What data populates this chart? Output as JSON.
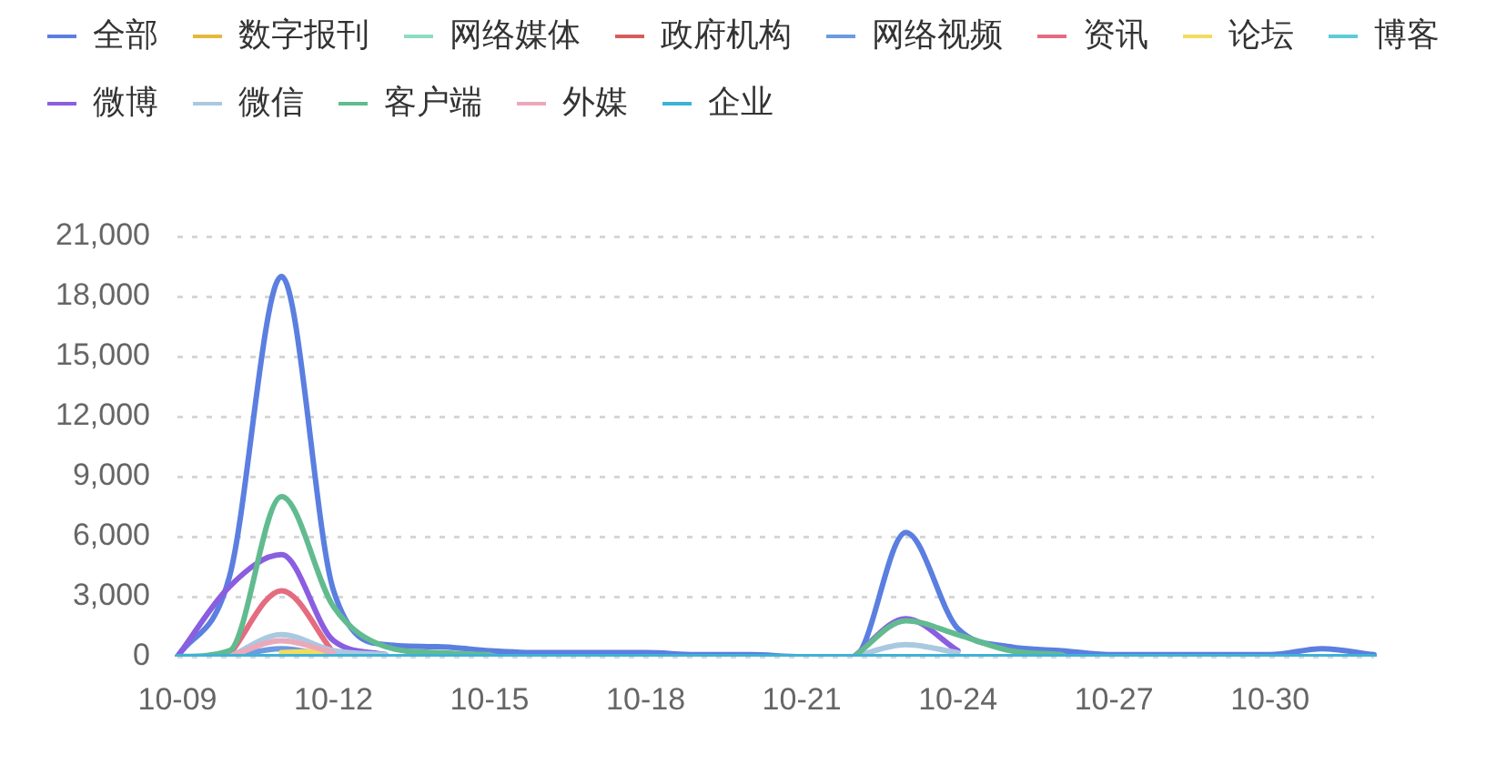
{
  "chart_data": {
    "type": "line",
    "categories": [
      "10-09",
      null,
      null,
      "10-12",
      null,
      null,
      "10-15",
      null,
      null,
      "10-18",
      null,
      null,
      "10-21",
      null,
      null,
      "10-24",
      null,
      null,
      "10-27",
      null,
      null,
      "10-30",
      null,
      null
    ],
    "series": [
      {
        "name": "全部",
        "color": "#5b7fe0",
        "values": [
          0,
          4000,
          19000,
          3300,
          600,
          500,
          300,
          200,
          200,
          200,
          100,
          100,
          0,
          0,
          6200,
          1400,
          500,
          300,
          100,
          100,
          100,
          100,
          400,
          100
        ]
      },
      {
        "name": "数字报刊",
        "color": "#e6b73a",
        "values": [
          null,
          null,
          null,
          null,
          null,
          null,
          null,
          null,
          null,
          null,
          null,
          null,
          null,
          null,
          null,
          null,
          null,
          null,
          null,
          null,
          null,
          null,
          null,
          null
        ]
      },
      {
        "name": "网络媒体",
        "color": "#8edcbf",
        "values": [
          null,
          null,
          null,
          null,
          null,
          null,
          null,
          null,
          null,
          null,
          null,
          null,
          null,
          null,
          null,
          null,
          null,
          null,
          null,
          null,
          null,
          null,
          null,
          null
        ]
      },
      {
        "name": "政府机构",
        "color": "#d65c5c",
        "values": [
          null,
          null,
          null,
          null,
          null,
          null,
          null,
          null,
          null,
          null,
          null,
          null,
          null,
          null,
          null,
          null,
          null,
          null,
          null,
          null,
          null,
          null,
          null,
          null
        ]
      },
      {
        "name": "网络视频",
        "color": "#6b9be0",
        "values": [
          null,
          0,
          400,
          0,
          null,
          null,
          null,
          null,
          null,
          null,
          null,
          null,
          null,
          null,
          null,
          null,
          null,
          null,
          null,
          null,
          null,
          null,
          null,
          null
        ]
      },
      {
        "name": "资讯",
        "color": "#e56b80",
        "values": [
          null,
          100,
          3300,
          200,
          null,
          null,
          null,
          null,
          null,
          null,
          null,
          null,
          null,
          null,
          null,
          null,
          null,
          null,
          null,
          null,
          null,
          null,
          null,
          null
        ]
      },
      {
        "name": "论坛",
        "color": "#f2dc5e",
        "values": [
          null,
          null,
          200,
          300,
          null,
          null,
          null,
          null,
          null,
          null,
          null,
          null,
          null,
          null,
          null,
          null,
          null,
          null,
          null,
          null,
          null,
          null,
          null,
          null
        ]
      },
      {
        "name": "博客",
        "color": "#5ecbd9",
        "values": [
          null,
          null,
          null,
          null,
          null,
          null,
          null,
          null,
          null,
          null,
          null,
          null,
          null,
          null,
          null,
          null,
          null,
          null,
          null,
          null,
          null,
          null,
          null,
          null
        ]
      },
      {
        "name": "微博",
        "color": "#8a5ee0",
        "values": [
          0,
          3500,
          5100,
          800,
          100,
          null,
          null,
          null,
          null,
          null,
          null,
          null,
          null,
          0,
          1900,
          300,
          null,
          null,
          null,
          null,
          null,
          null,
          null,
          null
        ]
      },
      {
        "name": "微信",
        "color": "#a9c9e0",
        "values": [
          null,
          0,
          1100,
          300,
          100,
          null,
          null,
          null,
          null,
          null,
          null,
          null,
          null,
          0,
          600,
          200,
          null,
          null,
          null,
          null,
          null,
          null,
          null,
          null
        ]
      },
      {
        "name": "客户端",
        "color": "#62bb8f",
        "values": [
          0,
          300,
          8000,
          2500,
          500,
          200,
          100,
          null,
          null,
          null,
          null,
          null,
          null,
          0,
          1800,
          1100,
          300,
          100,
          null,
          null,
          null,
          null,
          null,
          null
        ]
      },
      {
        "name": "外媒",
        "color": "#eaa9bb",
        "values": [
          null,
          0,
          800,
          200,
          null,
          null,
          null,
          null,
          null,
          null,
          null,
          null,
          null,
          null,
          null,
          null,
          null,
          null,
          null,
          null,
          null,
          null,
          null,
          null
        ]
      },
      {
        "name": "企业",
        "color": "#3fb2d6",
        "values": [
          0,
          0,
          0,
          0,
          0,
          0,
          0,
          0,
          0,
          0,
          0,
          0,
          0,
          0,
          0,
          0,
          0,
          0,
          0,
          0,
          0,
          0,
          0,
          0
        ]
      }
    ],
    "ylim": [
      0,
      21000
    ],
    "yticks": [
      0,
      {
        "value": 3000,
        "label": "3,000"
      },
      {
        "value": 6000,
        "label": "6,000"
      },
      {
        "value": 9000,
        "label": "9,000"
      },
      {
        "value": 12000,
        "label": "12,000"
      },
      {
        "value": 15000,
        "label": "15,000"
      },
      {
        "value": 18000,
        "label": "18,000"
      },
      {
        "value": 21000,
        "label": "21,000"
      }
    ],
    "grid": "y",
    "legend": "top left",
    "marker": "none",
    "line_style": "solid"
  }
}
